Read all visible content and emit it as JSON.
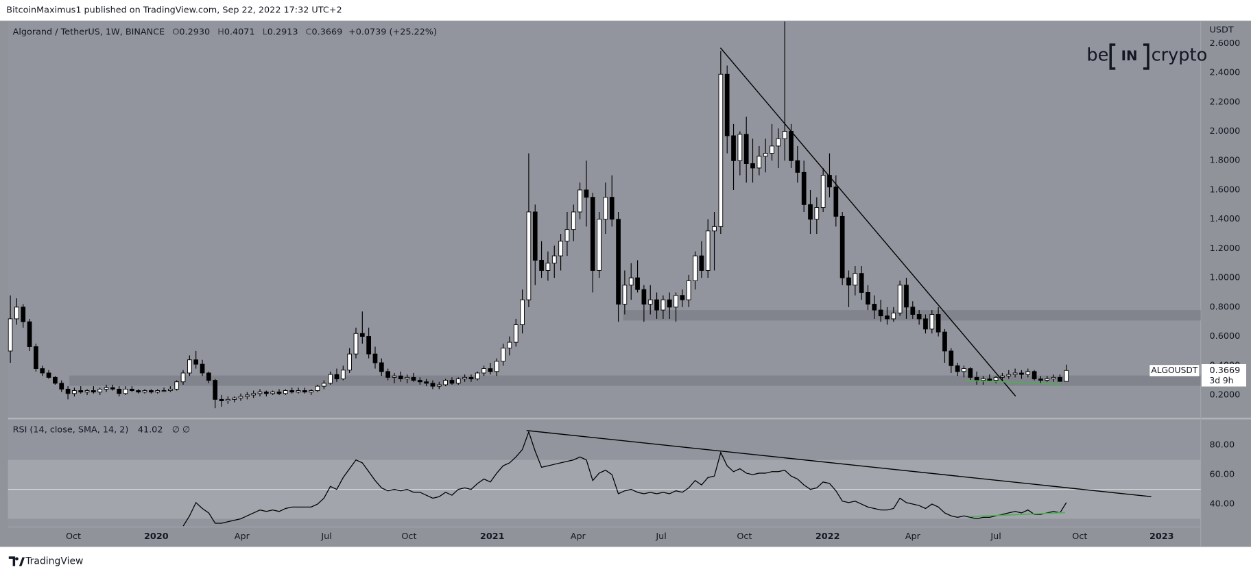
{
  "header": {
    "published": "BitcoinMaximus1 published on TradingView.com, Sep 22, 2022 17:32 UTC+2",
    "symbol": "Algorand / TetherUS, 1W, BINANCE",
    "ohlc": [
      {
        "label": "O",
        "value": "0.2930"
      },
      {
        "label": "H",
        "value": "0.4071"
      },
      {
        "label": "L",
        "value": "0.2913"
      },
      {
        "label": "C",
        "value": "0.3669"
      }
    ],
    "change": "+0.0739 (+25.22%)"
  },
  "logo": {
    "left": "be",
    "middle": "IN",
    "right": "crypto"
  },
  "footer": "TradingView",
  "chart_data": [
    {
      "type": "candlestick",
      "axis_title": "USDT",
      "up_color": "#ffffff",
      "down_color": "#000000",
      "wick_color": "#000000",
      "open": [
        0.5,
        0.72,
        0.8,
        0.7,
        0.53,
        0.38,
        0.35,
        0.32,
        0.28,
        0.24,
        0.21,
        0.23,
        0.22,
        0.23,
        0.22,
        0.24,
        0.25,
        0.24,
        0.21,
        0.24,
        0.23,
        0.22,
        0.23,
        0.22,
        0.23,
        0.23,
        0.24,
        0.29,
        0.35,
        0.44,
        0.41,
        0.35,
        0.3,
        0.17,
        0.16,
        0.17,
        0.18,
        0.19,
        0.2,
        0.21,
        0.22,
        0.21,
        0.22,
        0.21,
        0.23,
        0.22,
        0.23,
        0.22,
        0.23,
        0.26,
        0.28,
        0.34,
        0.31,
        0.37,
        0.48,
        0.62,
        0.6,
        0.48,
        0.42,
        0.36,
        0.32,
        0.33,
        0.31,
        0.32,
        0.3,
        0.29,
        0.28,
        0.26,
        0.27,
        0.3,
        0.28,
        0.31,
        0.32,
        0.31,
        0.35,
        0.38,
        0.36,
        0.43,
        0.52,
        0.56,
        0.68,
        0.85,
        1.45,
        1.12,
        1.05,
        1.1,
        1.15,
        1.25,
        1.33,
        1.45,
        1.6,
        1.55,
        1.05,
        1.4,
        1.55,
        1.4,
        0.82,
        0.95,
        1.0,
        0.92,
        0.82,
        0.85,
        0.78,
        0.85,
        0.8,
        0.88,
        0.85,
        0.98,
        1.15,
        1.05,
        1.32,
        1.35,
        2.39,
        1.97,
        1.8,
        1.98,
        1.78,
        1.75,
        1.83,
        1.85,
        1.9,
        1.95,
        2.0,
        1.8,
        1.72,
        1.5,
        1.4,
        1.48,
        1.7,
        1.62,
        1.42,
        1.0,
        0.95,
        1.03,
        0.9,
        0.82,
        0.78,
        0.74,
        0.72,
        0.76,
        0.95,
        0.8,
        0.75,
        0.72,
        0.65,
        0.75,
        0.63,
        0.5,
        0.4,
        0.36,
        0.38,
        0.32,
        0.3,
        0.31,
        0.3,
        0.32,
        0.33,
        0.34,
        0.35,
        0.34,
        0.36,
        0.31,
        0.3,
        0.31,
        0.32,
        0.293
      ],
      "high": [
        0.88,
        0.86,
        0.82,
        0.72,
        0.55,
        0.4,
        0.37,
        0.33,
        0.3,
        0.26,
        0.25,
        0.26,
        0.24,
        0.26,
        0.25,
        0.27,
        0.27,
        0.26,
        0.26,
        0.26,
        0.24,
        0.24,
        0.24,
        0.24,
        0.25,
        0.26,
        0.3,
        0.37,
        0.47,
        0.5,
        0.44,
        0.36,
        0.31,
        0.2,
        0.19,
        0.19,
        0.21,
        0.22,
        0.23,
        0.24,
        0.23,
        0.23,
        0.24,
        0.24,
        0.25,
        0.25,
        0.25,
        0.24,
        0.27,
        0.3,
        0.36,
        0.38,
        0.4,
        0.52,
        0.66,
        0.77,
        0.66,
        0.53,
        0.45,
        0.38,
        0.35,
        0.36,
        0.34,
        0.35,
        0.32,
        0.31,
        0.3,
        0.29,
        0.31,
        0.32,
        0.32,
        0.34,
        0.34,
        0.36,
        0.4,
        0.42,
        0.45,
        0.55,
        0.6,
        0.72,
        0.92,
        1.85,
        1.5,
        1.25,
        1.18,
        1.22,
        1.3,
        1.45,
        1.5,
        1.65,
        1.8,
        1.58,
        1.45,
        1.65,
        1.7,
        1.45,
        1.05,
        1.1,
        1.12,
        0.95,
        0.95,
        0.9,
        0.88,
        0.9,
        0.9,
        0.92,
        1.02,
        1.18,
        1.25,
        1.4,
        1.45,
        2.55,
        2.45,
        2.05,
        2.0,
        2.1,
        1.95,
        1.9,
        1.95,
        2.05,
        2.02,
        2.8,
        2.05,
        1.9,
        1.8,
        1.6,
        1.55,
        1.75,
        1.85,
        1.7,
        1.45,
        1.05,
        1.08,
        1.08,
        0.95,
        0.88,
        0.85,
        0.8,
        0.8,
        0.98,
        1.0,
        0.84,
        0.78,
        0.75,
        0.78,
        0.8,
        0.65,
        0.52,
        0.42,
        0.4,
        0.39,
        0.36,
        0.33,
        0.34,
        0.33,
        0.35,
        0.37,
        0.38,
        0.37,
        0.38,
        0.37,
        0.33,
        0.33,
        0.34,
        0.34,
        0.4071
      ],
      "low": [
        0.42,
        0.68,
        0.66,
        0.5,
        0.36,
        0.33,
        0.31,
        0.27,
        0.22,
        0.17,
        0.19,
        0.21,
        0.2,
        0.21,
        0.2,
        0.22,
        0.23,
        0.19,
        0.2,
        0.22,
        0.21,
        0.21,
        0.21,
        0.21,
        0.22,
        0.22,
        0.23,
        0.27,
        0.33,
        0.38,
        0.33,
        0.28,
        0.11,
        0.12,
        0.14,
        0.15,
        0.16,
        0.17,
        0.18,
        0.19,
        0.19,
        0.2,
        0.2,
        0.2,
        0.21,
        0.21,
        0.21,
        0.2,
        0.22,
        0.24,
        0.27,
        0.29,
        0.3,
        0.35,
        0.45,
        0.55,
        0.45,
        0.38,
        0.33,
        0.3,
        0.28,
        0.29,
        0.28,
        0.29,
        0.27,
        0.26,
        0.24,
        0.24,
        0.26,
        0.27,
        0.27,
        0.29,
        0.29,
        0.3,
        0.33,
        0.34,
        0.33,
        0.4,
        0.47,
        0.53,
        0.62,
        0.8,
        0.95,
        1.0,
        0.98,
        1.0,
        1.05,
        1.15,
        1.25,
        1.4,
        1.35,
        0.9,
        1.0,
        1.3,
        1.35,
        0.7,
        0.75,
        0.85,
        0.9,
        0.7,
        0.75,
        0.72,
        0.72,
        0.72,
        0.7,
        0.8,
        0.8,
        0.92,
        1.0,
        1.0,
        1.05,
        1.3,
        1.85,
        1.6,
        1.7,
        1.65,
        1.65,
        1.7,
        1.72,
        1.8,
        1.75,
        1.8,
        1.75,
        1.65,
        1.45,
        1.3,
        1.3,
        1.45,
        1.55,
        1.35,
        0.95,
        0.8,
        0.88,
        0.85,
        0.78,
        0.72,
        0.7,
        0.68,
        0.7,
        0.74,
        0.72,
        0.72,
        0.68,
        0.62,
        0.62,
        0.6,
        0.42,
        0.35,
        0.33,
        0.32,
        0.3,
        0.27,
        0.27,
        0.29,
        0.28,
        0.3,
        0.31,
        0.32,
        0.31,
        0.32,
        0.3,
        0.28,
        0.29,
        0.29,
        0.29,
        0.2913
      ],
      "close": [
        0.72,
        0.8,
        0.7,
        0.53,
        0.38,
        0.35,
        0.32,
        0.28,
        0.24,
        0.21,
        0.23,
        0.22,
        0.23,
        0.22,
        0.24,
        0.25,
        0.24,
        0.21,
        0.24,
        0.23,
        0.22,
        0.23,
        0.22,
        0.23,
        0.23,
        0.24,
        0.29,
        0.35,
        0.44,
        0.41,
        0.35,
        0.3,
        0.17,
        0.16,
        0.17,
        0.18,
        0.19,
        0.2,
        0.21,
        0.22,
        0.21,
        0.22,
        0.21,
        0.23,
        0.22,
        0.23,
        0.22,
        0.23,
        0.26,
        0.28,
        0.34,
        0.31,
        0.37,
        0.48,
        0.62,
        0.6,
        0.48,
        0.42,
        0.36,
        0.32,
        0.33,
        0.31,
        0.32,
        0.3,
        0.29,
        0.28,
        0.26,
        0.27,
        0.3,
        0.28,
        0.31,
        0.32,
        0.31,
        0.35,
        0.38,
        0.36,
        0.43,
        0.52,
        0.56,
        0.68,
        0.85,
        1.45,
        1.12,
        1.05,
        1.1,
        1.15,
        1.25,
        1.33,
        1.45,
        1.6,
        1.55,
        1.05,
        1.4,
        1.55,
        1.4,
        0.82,
        0.95,
        1.0,
        0.92,
        0.82,
        0.85,
        0.78,
        0.85,
        0.8,
        0.88,
        0.85,
        0.98,
        1.15,
        1.05,
        1.32,
        1.35,
        2.39,
        1.97,
        1.8,
        1.98,
        1.78,
        1.75,
        1.83,
        1.85,
        1.9,
        1.95,
        2.0,
        1.8,
        1.72,
        1.5,
        1.4,
        1.48,
        1.7,
        1.62,
        1.42,
        1.0,
        0.95,
        1.03,
        0.9,
        0.82,
        0.78,
        0.74,
        0.72,
        0.76,
        0.95,
        0.8,
        0.75,
        0.72,
        0.65,
        0.75,
        0.63,
        0.5,
        0.4,
        0.36,
        0.38,
        0.32,
        0.3,
        0.31,
        0.3,
        0.32,
        0.33,
        0.34,
        0.35,
        0.34,
        0.36,
        0.31,
        0.3,
        0.31,
        0.32,
        0.293,
        0.3669
      ],
      "xlim": [
        -0.37,
        186
      ],
      "ylim": [
        0.05,
        2.75
      ],
      "yticks": [
        {
          "value": 0.2,
          "label": "0.2000"
        },
        {
          "value": 0.4,
          "label": "0.4000"
        },
        {
          "value": 0.6,
          "label": "0.6000"
        },
        {
          "value": 0.8,
          "label": "0.8000"
        },
        {
          "value": 1.0,
          "label": "1.0000"
        },
        {
          "value": 1.2,
          "label": "1.2000"
        },
        {
          "value": 1.4,
          "label": "1.4000"
        },
        {
          "value": 1.6,
          "label": "1.6000"
        },
        {
          "value": 1.8,
          "label": "1.8000"
        },
        {
          "value": 2.0,
          "label": "2.0000"
        },
        {
          "value": 2.2,
          "label": "2.2000"
        },
        {
          "value": 2.4,
          "label": "2.4000"
        },
        {
          "value": 2.6,
          "label": "2.6000"
        }
      ],
      "price_tag": {
        "symbol": "ALGOUSDT",
        "price": "0.3669",
        "countdown": "3d 9h"
      }
    },
    {
      "type": "line",
      "title": "RSI (14, close, SMA, 14, 2)",
      "value_text": "41.02",
      "extra_text": "∅ ∅",
      "color": "#000000",
      "values": [
        null,
        null,
        null,
        null,
        null,
        null,
        null,
        null,
        null,
        null,
        null,
        null,
        null,
        null,
        null,
        null,
        null,
        null,
        null,
        null,
        null,
        null,
        null,
        null,
        null,
        null,
        null,
        25,
        32,
        41,
        37,
        34,
        27,
        27,
        28,
        29,
        30,
        32,
        34,
        36,
        35,
        36,
        35,
        37,
        38,
        38,
        38,
        38,
        40,
        44,
        52,
        50,
        58,
        64,
        70,
        68,
        62,
        56,
        51,
        49,
        50,
        49,
        50,
        48,
        48,
        46,
        44,
        45,
        48,
        46,
        50,
        51,
        50,
        54,
        57,
        55,
        61,
        66,
        68,
        72,
        77,
        89,
        76,
        65,
        66,
        67,
        68,
        69,
        70,
        72,
        70,
        56,
        61,
        63,
        60,
        47,
        49,
        50,
        48,
        47,
        48,
        47,
        48,
        47,
        49,
        48,
        51,
        56,
        53,
        58,
        59,
        75,
        66,
        62,
        64,
        61,
        60,
        61,
        61,
        62,
        62,
        63,
        59,
        57,
        53,
        50,
        51,
        55,
        54,
        49,
        42,
        41,
        42,
        40,
        38,
        37,
        36,
        36,
        37,
        44,
        41,
        40,
        39,
        37,
        40,
        38,
        34,
        32,
        31,
        32,
        31,
        30,
        31,
        31,
        32,
        33,
        34,
        35,
        34,
        36,
        33,
        33,
        34,
        35,
        34,
        41.02
      ],
      "band": [
        30,
        70
      ],
      "midline": 50,
      "xlim": [
        -0.37,
        186
      ],
      "ylim": [
        25,
        97
      ],
      "yticks": [
        {
          "value": 40,
          "label": "40.00"
        },
        {
          "value": 60,
          "label": "60.00"
        },
        {
          "value": 80,
          "label": "80.00"
        }
      ],
      "xticks": [
        {
          "value": 9.85,
          "label": "Oct"
        },
        {
          "value": 22.8,
          "label": "2020"
        },
        {
          "value": 36.2,
          "label": "Apr"
        },
        {
          "value": 49.4,
          "label": "Jul"
        },
        {
          "value": 62.3,
          "label": "Oct"
        },
        {
          "value": 75.3,
          "label": "2021"
        },
        {
          "value": 88.7,
          "label": "Apr"
        },
        {
          "value": 101.7,
          "label": "Jul"
        },
        {
          "value": 114.7,
          "label": "Oct"
        },
        {
          "value": 127.7,
          "label": "2022"
        },
        {
          "value": 141.0,
          "label": "Apr"
        },
        {
          "value": 154.0,
          "label": "Jul"
        },
        {
          "value": 167.1,
          "label": "Oct"
        },
        {
          "value": 179.9,
          "label": "2023"
        }
      ]
    }
  ]
}
